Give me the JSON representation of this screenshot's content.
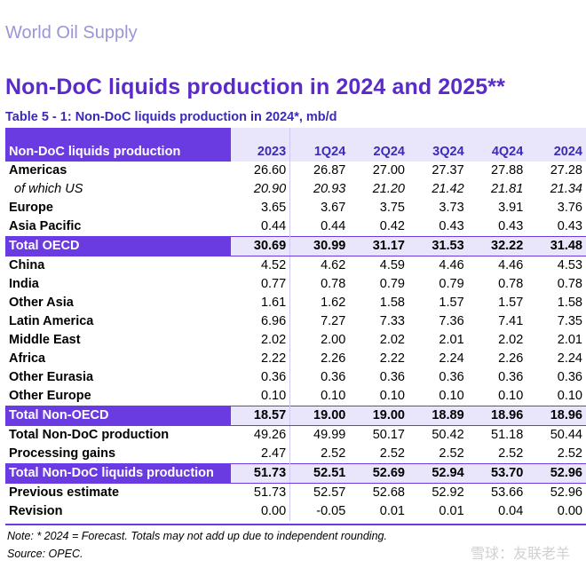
{
  "header": {
    "section": "World Oil Supply",
    "heading": "Non-DoC liquids production in 2024 and 2025**",
    "table_title": "Table 5 - 1: Non-DoC liquids production in 2024*, mb/d"
  },
  "table": {
    "columns": [
      "Non-DoC liquids production",
      "2023",
      "1Q24",
      "2Q24",
      "3Q24",
      "4Q24",
      "2024"
    ],
    "rows": [
      {
        "label": "Americas",
        "values": [
          "26.60",
          "26.87",
          "27.00",
          "27.37",
          "27.88",
          "27.28"
        ],
        "style": "normal"
      },
      {
        "label": "of which US",
        "values": [
          "20.90",
          "20.93",
          "21.20",
          "21.42",
          "21.81",
          "21.34"
        ],
        "style": "sub"
      },
      {
        "label": "Europe",
        "values": [
          "3.65",
          "3.67",
          "3.75",
          "3.73",
          "3.91",
          "3.76"
        ],
        "style": "normal"
      },
      {
        "label": "Asia Pacific",
        "values": [
          "0.44",
          "0.44",
          "0.42",
          "0.43",
          "0.43",
          "0.43"
        ],
        "style": "normal"
      },
      {
        "label": "Total OECD",
        "values": [
          "30.69",
          "30.99",
          "31.17",
          "31.53",
          "32.22",
          "31.48"
        ],
        "style": "total"
      },
      {
        "label": "China",
        "values": [
          "4.52",
          "4.62",
          "4.59",
          "4.46",
          "4.46",
          "4.53"
        ],
        "style": "normal"
      },
      {
        "label": "India",
        "values": [
          "0.77",
          "0.78",
          "0.79",
          "0.79",
          "0.78",
          "0.78"
        ],
        "style": "normal"
      },
      {
        "label": "Other Asia",
        "values": [
          "1.61",
          "1.62",
          "1.58",
          "1.57",
          "1.57",
          "1.58"
        ],
        "style": "normal"
      },
      {
        "label": "Latin America",
        "values": [
          "6.96",
          "7.27",
          "7.33",
          "7.36",
          "7.41",
          "7.35"
        ],
        "style": "normal"
      },
      {
        "label": "Middle East",
        "values": [
          "2.02",
          "2.00",
          "2.02",
          "2.01",
          "2.02",
          "2.01"
        ],
        "style": "normal"
      },
      {
        "label": "Africa",
        "values": [
          "2.22",
          "2.26",
          "2.22",
          "2.24",
          "2.26",
          "2.24"
        ],
        "style": "normal"
      },
      {
        "label": "Other Eurasia",
        "values": [
          "0.36",
          "0.36",
          "0.36",
          "0.36",
          "0.36",
          "0.36"
        ],
        "style": "normal"
      },
      {
        "label": "Other Europe",
        "values": [
          "0.10",
          "0.10",
          "0.10",
          "0.10",
          "0.10",
          "0.10"
        ],
        "style": "normal"
      },
      {
        "label": "Total Non-OECD",
        "values": [
          "18.57",
          "19.00",
          "19.00",
          "18.89",
          "18.96",
          "18.96"
        ],
        "style": "total"
      },
      {
        "label": "Total Non-DoC production",
        "values": [
          "49.26",
          "49.99",
          "50.17",
          "50.42",
          "51.18",
          "50.44"
        ],
        "style": "normal"
      },
      {
        "label": "Processing gains",
        "values": [
          "2.47",
          "2.52",
          "2.52",
          "2.52",
          "2.52",
          "2.52"
        ],
        "style": "normal"
      },
      {
        "label": "Total Non-DoC liquids production",
        "values": [
          "51.73",
          "52.51",
          "52.69",
          "52.94",
          "53.70",
          "52.96"
        ],
        "style": "total"
      },
      {
        "label": "Previous estimate",
        "values": [
          "51.73",
          "52.57",
          "52.68",
          "52.92",
          "53.66",
          "52.96"
        ],
        "style": "normal"
      },
      {
        "label": "Revision",
        "values": [
          "0.00",
          "-0.05",
          "0.01",
          "0.01",
          "0.04",
          "0.00"
        ],
        "style": "normal"
      }
    ]
  },
  "footer": {
    "note": "Note: * 2024 = Forecast. Totals may not add up due to independent rounding.",
    "source": "Source: OPEC."
  },
  "watermark": "雪球：友联老羊",
  "colors": {
    "accent": "#6a3be0",
    "heading": "#5a2bc8",
    "section": "#9a95d6",
    "band": "#e9e6fb"
  }
}
